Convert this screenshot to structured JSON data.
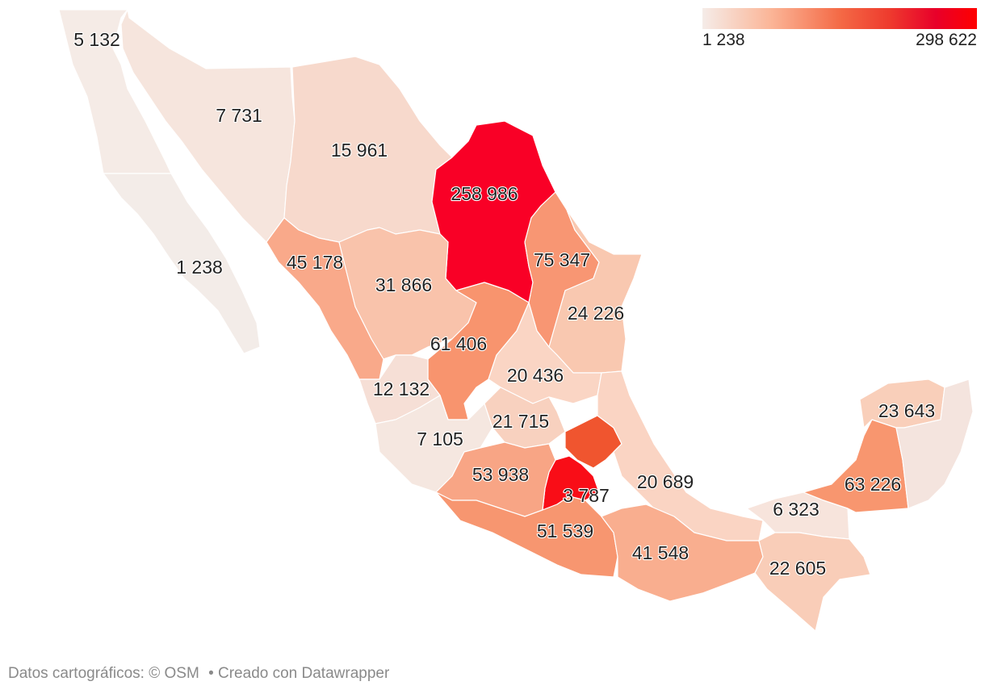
{
  "legend": {
    "min_label": "1 238",
    "max_label": "298 622",
    "min_value": 1238,
    "max_value": 298622,
    "colors": [
      "#f5ece8",
      "#fbcbb4",
      "#f9a17a",
      "#f05a3a",
      "#e8002a",
      "#ff0000"
    ]
  },
  "regions": [
    {
      "id": "baja-california",
      "label": "5 132",
      "value": 5132
    },
    {
      "id": "sonora",
      "label": "7 731",
      "value": 7731
    },
    {
      "id": "chihuahua",
      "label": "15 961",
      "value": 15961
    },
    {
      "id": "coahuila",
      "label": "258 986",
      "value": 258986
    },
    {
      "id": "baja-california-sur",
      "label": "1 238",
      "value": 1238
    },
    {
      "id": "sinaloa",
      "label": "45 178",
      "value": 45178
    },
    {
      "id": "durango",
      "label": "31 866",
      "value": 31866
    },
    {
      "id": "nuevo-leon",
      "label": "75 347",
      "value": 75347
    },
    {
      "id": "tamaulipas",
      "label": "24 226",
      "value": 24226
    },
    {
      "id": "zacatecas",
      "label": "61 406",
      "value": 61406
    },
    {
      "id": "san-luis-potosi",
      "label": "20 436",
      "value": 20436
    },
    {
      "id": "nayarit",
      "label": "12 132",
      "value": 12132
    },
    {
      "id": "guanajuato",
      "label": "21 715",
      "value": 21715
    },
    {
      "id": "jalisco",
      "label": "7 105",
      "value": 7105
    },
    {
      "id": "michoacan",
      "label": "53 938",
      "value": 53938
    },
    {
      "id": "estado-de-mexico",
      "label": "3 787",
      "value": 3787
    },
    {
      "id": "veracruz",
      "label": "20 689",
      "value": 20689
    },
    {
      "id": "guerrero",
      "label": "51 539",
      "value": 51539
    },
    {
      "id": "oaxaca",
      "label": "41 548",
      "value": 41548
    },
    {
      "id": "tabasco",
      "label": "6 323",
      "value": 6323
    },
    {
      "id": "chiapas",
      "label": "22 605",
      "value": 22605
    },
    {
      "id": "yucatan",
      "label": "23 643",
      "value": 23643
    },
    {
      "id": "campeche",
      "label": "63 226",
      "value": 63226
    }
  ],
  "footer": {
    "attribution": "Datos cartográficos: © OSM",
    "credit": "• Creado con Datawrapper"
  }
}
